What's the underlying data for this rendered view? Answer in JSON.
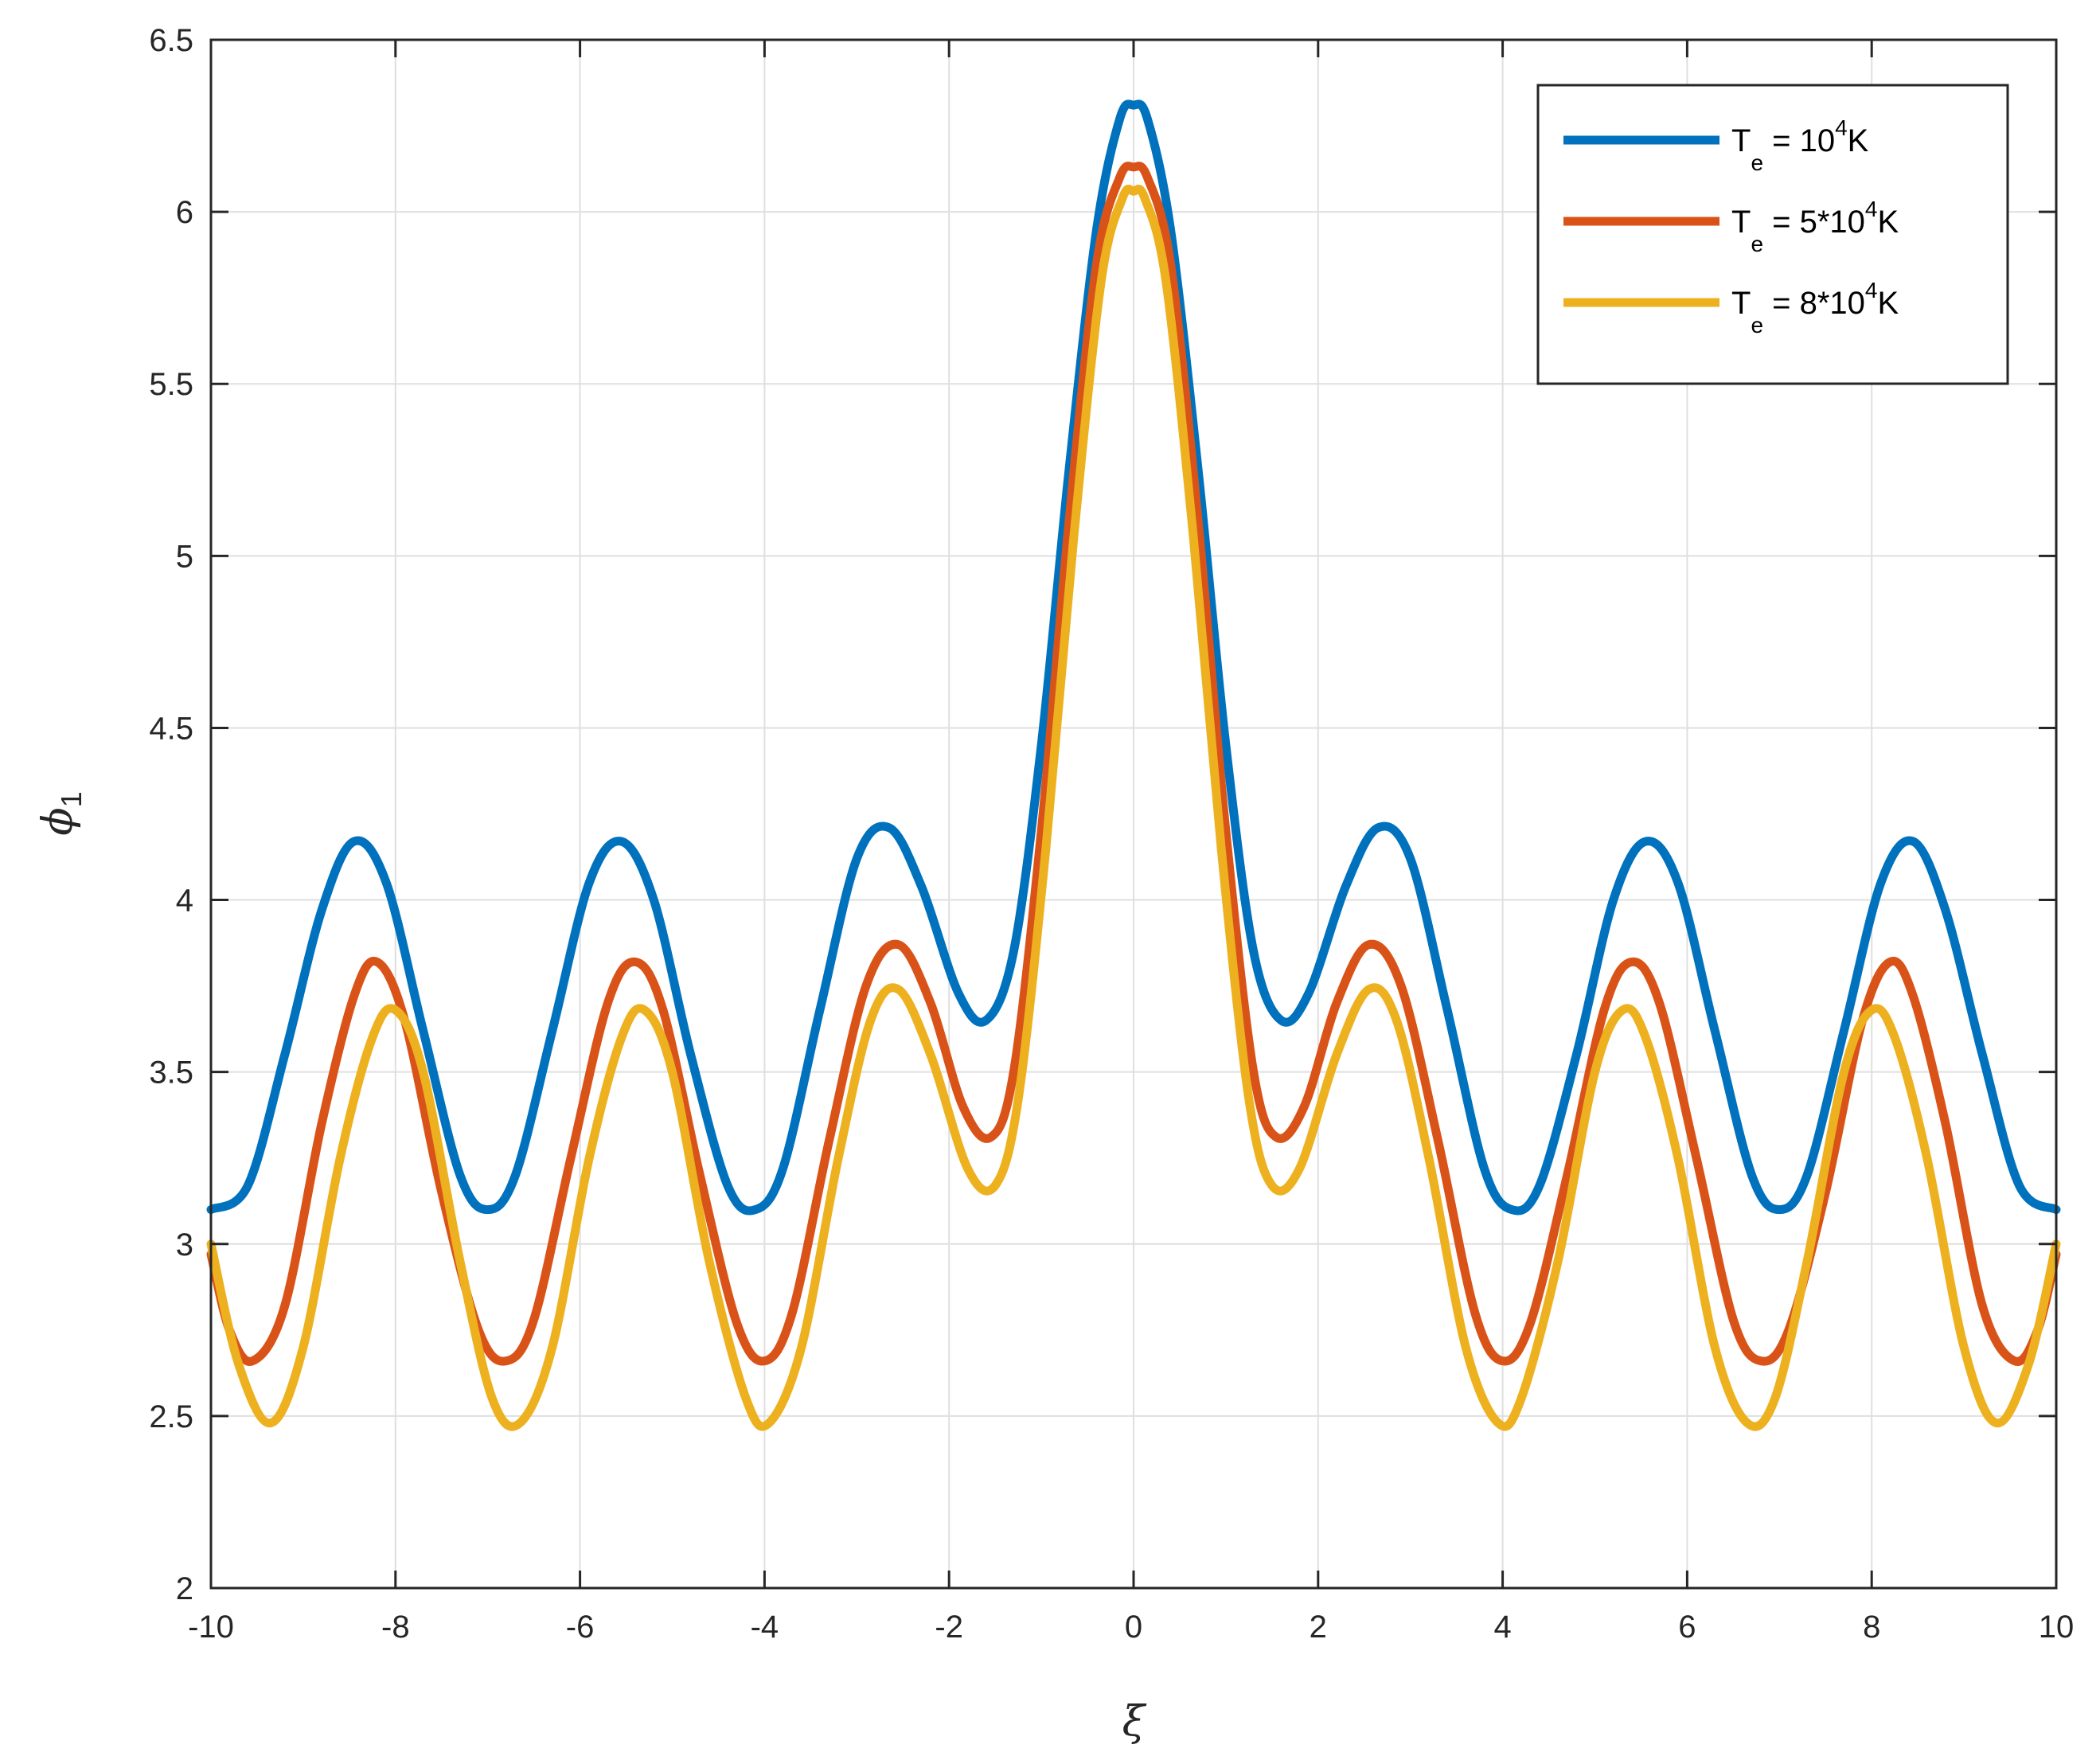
{
  "chart_data": {
    "type": "line",
    "xlabel": "ξ",
    "ylabel": "ϕ",
    "ylabel_subscript": "1",
    "xlim": [
      -10,
      10
    ],
    "ylim": [
      2,
      6.5
    ],
    "xticks": [
      -10,
      -8,
      -6,
      -4,
      -2,
      0,
      2,
      4,
      6,
      8,
      10
    ],
    "yticks": [
      2,
      2.5,
      3,
      3.5,
      4,
      4.5,
      5,
      5.5,
      6,
      6.5
    ],
    "xtick_labels": [
      "-10",
      "-8",
      "-6",
      "-4",
      "-2",
      "0",
      "2",
      "4",
      "6",
      "8",
      "10"
    ],
    "ytick_labels": [
      "2",
      "2.5",
      "3",
      "3.5",
      "4",
      "4.5",
      "5",
      "5.5",
      "6",
      "6.5"
    ],
    "grid": true,
    "legend_position": "top-right",
    "series": [
      {
        "legend": {
          "base": "T",
          "sub": "e",
          "mid": " = 10",
          "sup": "4",
          "end": "K"
        },
        "color": "#0072BD",
        "points": [
          [
            -10,
            3.1
          ],
          [
            -9.6,
            3.17
          ],
          [
            -9.2,
            3.55
          ],
          [
            -8.8,
            3.97
          ],
          [
            -8.45,
            4.17
          ],
          [
            -8.1,
            4.05
          ],
          [
            -7.7,
            3.62
          ],
          [
            -7.3,
            3.2
          ],
          [
            -7.0,
            3.1
          ],
          [
            -6.7,
            3.2
          ],
          [
            -6.3,
            3.62
          ],
          [
            -5.9,
            4.05
          ],
          [
            -5.55,
            4.17
          ],
          [
            -5.2,
            4.0
          ],
          [
            -4.8,
            3.55
          ],
          [
            -4.4,
            3.17
          ],
          [
            -4.1,
            3.1
          ],
          [
            -3.8,
            3.22
          ],
          [
            -3.4,
            3.68
          ],
          [
            -3.0,
            4.12
          ],
          [
            -2.65,
            4.21
          ],
          [
            -2.3,
            4.04
          ],
          [
            -1.9,
            3.73
          ],
          [
            -1.6,
            3.65
          ],
          [
            -1.3,
            3.85
          ],
          [
            -1.0,
            4.45
          ],
          [
            -0.7,
            5.25
          ],
          [
            -0.4,
            5.95
          ],
          [
            -0.15,
            6.27
          ],
          [
            0,
            6.31
          ],
          [
            0.15,
            6.27
          ],
          [
            0.4,
            5.95
          ],
          [
            0.7,
            5.25
          ],
          [
            1.0,
            4.45
          ],
          [
            1.3,
            3.85
          ],
          [
            1.6,
            3.65
          ],
          [
            1.9,
            3.73
          ],
          [
            2.3,
            4.04
          ],
          [
            2.65,
            4.21
          ],
          [
            3.0,
            4.12
          ],
          [
            3.4,
            3.68
          ],
          [
            3.8,
            3.22
          ],
          [
            4.1,
            3.1
          ],
          [
            4.4,
            3.17
          ],
          [
            4.8,
            3.55
          ],
          [
            5.2,
            4.0
          ],
          [
            5.55,
            4.17
          ],
          [
            5.9,
            4.05
          ],
          [
            6.3,
            3.62
          ],
          [
            6.7,
            3.2
          ],
          [
            7.0,
            3.1
          ],
          [
            7.3,
            3.2
          ],
          [
            7.7,
            3.62
          ],
          [
            8.1,
            4.05
          ],
          [
            8.45,
            4.17
          ],
          [
            8.8,
            3.97
          ],
          [
            9.2,
            3.55
          ],
          [
            9.6,
            3.17
          ],
          [
            10,
            3.1
          ]
        ]
      },
      {
        "legend": {
          "base": "T",
          "sub": "e",
          "mid": " = 5*10",
          "sup": "4",
          "end": "K"
        },
        "color": "#D95319",
        "points": [
          [
            -10,
            2.97
          ],
          [
            -9.8,
            2.75
          ],
          [
            -9.55,
            2.66
          ],
          [
            -9.2,
            2.82
          ],
          [
            -8.8,
            3.35
          ],
          [
            -8.45,
            3.72
          ],
          [
            -8.2,
            3.82
          ],
          [
            -7.9,
            3.65
          ],
          [
            -7.5,
            3.15
          ],
          [
            -7.1,
            2.75
          ],
          [
            -6.8,
            2.66
          ],
          [
            -6.5,
            2.78
          ],
          [
            -6.1,
            3.25
          ],
          [
            -5.7,
            3.7
          ],
          [
            -5.4,
            3.82
          ],
          [
            -5.1,
            3.68
          ],
          [
            -4.7,
            3.2
          ],
          [
            -4.3,
            2.77
          ],
          [
            -4.0,
            2.66
          ],
          [
            -3.7,
            2.8
          ],
          [
            -3.3,
            3.3
          ],
          [
            -2.9,
            3.75
          ],
          [
            -2.55,
            3.87
          ],
          [
            -2.2,
            3.7
          ],
          [
            -1.85,
            3.4
          ],
          [
            -1.55,
            3.31
          ],
          [
            -1.3,
            3.5
          ],
          [
            -1.0,
            4.2
          ],
          [
            -0.7,
            5.1
          ],
          [
            -0.4,
            5.85
          ],
          [
            -0.15,
            6.1
          ],
          [
            0,
            6.13
          ],
          [
            0.15,
            6.1
          ],
          [
            0.4,
            5.85
          ],
          [
            0.7,
            5.1
          ],
          [
            1.0,
            4.2
          ],
          [
            1.3,
            3.5
          ],
          [
            1.55,
            3.31
          ],
          [
            1.85,
            3.4
          ],
          [
            2.2,
            3.7
          ],
          [
            2.55,
            3.87
          ],
          [
            2.9,
            3.75
          ],
          [
            3.3,
            3.3
          ],
          [
            3.7,
            2.8
          ],
          [
            4.0,
            2.66
          ],
          [
            4.3,
            2.77
          ],
          [
            4.7,
            3.2
          ],
          [
            5.1,
            3.68
          ],
          [
            5.4,
            3.82
          ],
          [
            5.7,
            3.7
          ],
          [
            6.1,
            3.25
          ],
          [
            6.5,
            2.78
          ],
          [
            6.8,
            2.66
          ],
          [
            7.1,
            2.75
          ],
          [
            7.5,
            3.15
          ],
          [
            7.9,
            3.65
          ],
          [
            8.2,
            3.82
          ],
          [
            8.45,
            3.72
          ],
          [
            8.8,
            3.35
          ],
          [
            9.2,
            2.82
          ],
          [
            9.55,
            2.66
          ],
          [
            9.8,
            2.75
          ],
          [
            10,
            2.97
          ]
        ]
      },
      {
        "legend": {
          "base": "T",
          "sub": "e",
          "mid": " = 8*10",
          "sup": "4",
          "end": "K"
        },
        "color": "#EDB120",
        "points": [
          [
            -10,
            3.0
          ],
          [
            -9.7,
            2.65
          ],
          [
            -9.35,
            2.48
          ],
          [
            -9.0,
            2.7
          ],
          [
            -8.6,
            3.25
          ],
          [
            -8.25,
            3.6
          ],
          [
            -8.0,
            3.68
          ],
          [
            -7.7,
            3.5
          ],
          [
            -7.3,
            2.95
          ],
          [
            -6.95,
            2.55
          ],
          [
            -6.65,
            2.48
          ],
          [
            -6.3,
            2.7
          ],
          [
            -5.9,
            3.25
          ],
          [
            -5.55,
            3.6
          ],
          [
            -5.3,
            3.68
          ],
          [
            -5.0,
            3.5
          ],
          [
            -4.6,
            2.95
          ],
          [
            -4.2,
            2.55
          ],
          [
            -3.95,
            2.48
          ],
          [
            -3.6,
            2.7
          ],
          [
            -3.2,
            3.25
          ],
          [
            -2.85,
            3.65
          ],
          [
            -2.55,
            3.74
          ],
          [
            -2.2,
            3.55
          ],
          [
            -1.8,
            3.22
          ],
          [
            -1.5,
            3.17
          ],
          [
            -1.25,
            3.42
          ],
          [
            -0.95,
            4.15
          ],
          [
            -0.65,
            5.05
          ],
          [
            -0.35,
            5.8
          ],
          [
            -0.12,
            6.04
          ],
          [
            0,
            6.06
          ],
          [
            0.12,
            6.04
          ],
          [
            0.35,
            5.8
          ],
          [
            0.65,
            5.05
          ],
          [
            0.95,
            4.15
          ],
          [
            1.25,
            3.42
          ],
          [
            1.5,
            3.17
          ],
          [
            1.8,
            3.22
          ],
          [
            2.2,
            3.55
          ],
          [
            2.55,
            3.74
          ],
          [
            2.85,
            3.65
          ],
          [
            3.2,
            3.25
          ],
          [
            3.6,
            2.7
          ],
          [
            3.95,
            2.48
          ],
          [
            4.2,
            2.55
          ],
          [
            4.6,
            2.95
          ],
          [
            5.0,
            3.5
          ],
          [
            5.3,
            3.68
          ],
          [
            5.55,
            3.6
          ],
          [
            5.9,
            3.25
          ],
          [
            6.3,
            2.7
          ],
          [
            6.65,
            2.48
          ],
          [
            6.95,
            2.55
          ],
          [
            7.3,
            2.95
          ],
          [
            7.7,
            3.5
          ],
          [
            8.0,
            3.68
          ],
          [
            8.25,
            3.6
          ],
          [
            8.6,
            3.25
          ],
          [
            9.0,
            2.7
          ],
          [
            9.35,
            2.48
          ],
          [
            9.7,
            2.65
          ],
          [
            10,
            3.0
          ]
        ]
      }
    ]
  }
}
